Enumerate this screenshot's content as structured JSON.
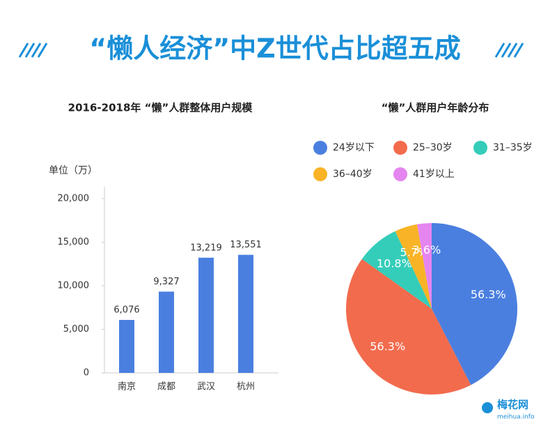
{
  "header": {
    "title": "“懒人经济”中Z世代占比超五成"
  },
  "chart_data": [
    {
      "type": "bar",
      "title": "2016-2018年 “懒”人群整体用户规模",
      "ylabel": "单位（万）",
      "categories": [
        "南京",
        "成都",
        "武汉",
        "杭州"
      ],
      "values": [
        6076,
        9327,
        13219,
        13551
      ],
      "value_labels": [
        "6,076",
        "9,327",
        "13,219",
        "13,551"
      ],
      "color": "#4a7fe0",
      "ylim": [
        0,
        20000
      ],
      "yticks": [
        0,
        {
          "value": 5000,
          "label": "5,000"
        },
        {
          "value": 10000,
          "label": "10,000"
        },
        {
          "value": 15000,
          "label": "15,000"
        },
        {
          "value": 20000,
          "label": "20,000"
        }
      ]
    },
    {
      "type": "pie",
      "title": "“懒”人群用户年龄分布",
      "categories": [
        "24岁以下",
        "25–30岁",
        "31–35岁",
        "36–40岁",
        "41岁以上"
      ],
      "values": [
        56.3,
        56.3,
        10.8,
        5.7,
        3.6
      ],
      "value_labels": [
        "56.3%",
        "56.3%",
        "10.8%",
        "5.7%",
        "3.6%"
      ],
      "colors": [
        "#4a7fe0",
        "#f26b4d",
        "#34cdb9",
        "#f8b426",
        "#e585f0"
      ]
    }
  ],
  "watermark": {
    "name": "梅花网",
    "url": "meihua.info"
  }
}
